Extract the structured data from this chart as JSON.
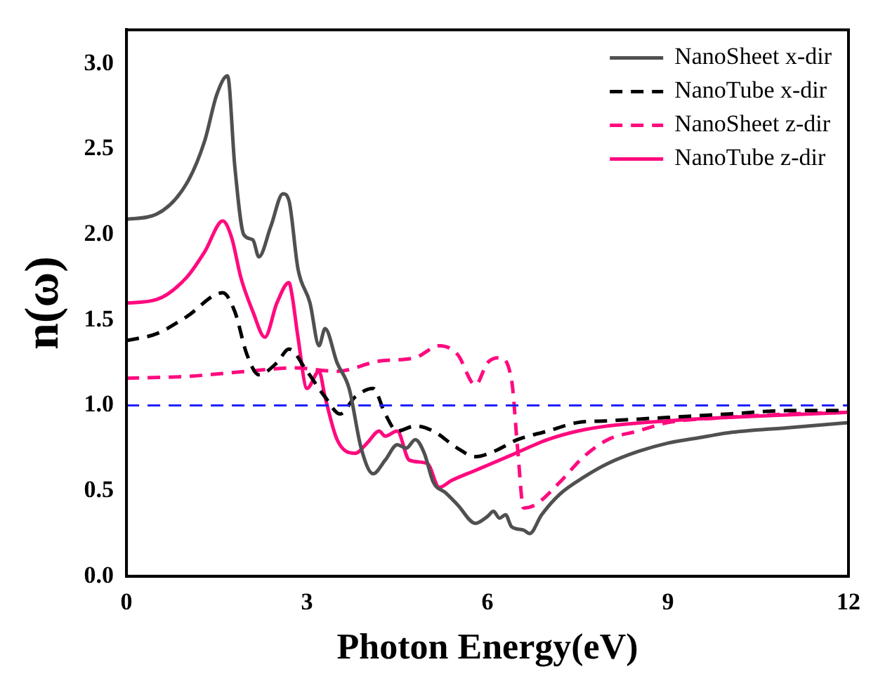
{
  "chart_data": {
    "type": "line",
    "xlabel": "Photon Energy(eV)",
    "ylabel": "n(ω)",
    "xlim": [
      0,
      12
    ],
    "ylim": [
      0,
      3.2
    ],
    "xticks": [
      0,
      3,
      6,
      9,
      12
    ],
    "yticks": [
      {
        "value": 0,
        "label": "0.0"
      },
      {
        "value": 0.5,
        "label": "0.5"
      },
      {
        "value": 1,
        "label": "1.0"
      },
      {
        "value": 1.5,
        "label": "1.5"
      },
      {
        "value": 2,
        "label": "2.0"
      },
      {
        "value": 2.5,
        "label": "2.5"
      },
      {
        "value": 3,
        "label": "3.0"
      }
    ],
    "grid": false,
    "legend": "top right",
    "marker": "none",
    "ref_lines": [
      {
        "axis": "y",
        "value": 1,
        "color": "#2020ff",
        "line_style": "dashed"
      }
    ],
    "series": [
      {
        "name": "NanoSheet x-dir",
        "color": "#505050",
        "line_style": "solid",
        "x": [
          0,
          0.5,
          1.0,
          1.3,
          1.5,
          1.68,
          1.8,
          1.95,
          2.1,
          2.2,
          2.4,
          2.6,
          2.7,
          2.85,
          3.05,
          3.2,
          3.3,
          3.5,
          3.7,
          3.9,
          4.1,
          4.3,
          4.5,
          4.65,
          4.8,
          4.95,
          5.1,
          5.3,
          5.5,
          5.8,
          6.0,
          6.1,
          6.2,
          6.3,
          6.4,
          6.6,
          6.7,
          6.9,
          7.2,
          7.6,
          8,
          8.5,
          9,
          9.5,
          10,
          11,
          12
        ],
        "values": [
          2.09,
          2.12,
          2.3,
          2.55,
          2.82,
          2.93,
          2.4,
          2.0,
          1.97,
          1.87,
          2.05,
          2.24,
          2.2,
          1.8,
          1.6,
          1.35,
          1.45,
          1.25,
          1.1,
          0.75,
          0.6,
          0.68,
          0.77,
          0.75,
          0.8,
          0.72,
          0.55,
          0.49,
          0.42,
          0.31,
          0.35,
          0.38,
          0.34,
          0.36,
          0.29,
          0.27,
          0.25,
          0.36,
          0.48,
          0.58,
          0.66,
          0.73,
          0.78,
          0.81,
          0.84,
          0.87,
          0.9
        ]
      },
      {
        "name": "NanoTube x-dir",
        "color": "#000000",
        "line_style": "dashed",
        "x": [
          0,
          0.5,
          1.0,
          1.6,
          1.8,
          2.0,
          2.2,
          2.5,
          2.7,
          3.0,
          3.3,
          3.55,
          3.8,
          4.1,
          4.3,
          4.5,
          4.8,
          5.1,
          5.5,
          5.8,
          6.1,
          6.5,
          7,
          7.5,
          8,
          9,
          10,
          11,
          12
        ],
        "values": [
          1.38,
          1.42,
          1.52,
          1.66,
          1.55,
          1.3,
          1.18,
          1.25,
          1.33,
          1.2,
          1.05,
          0.95,
          1.05,
          1.1,
          0.95,
          0.85,
          0.88,
          0.85,
          0.75,
          0.7,
          0.73,
          0.8,
          0.85,
          0.9,
          0.91,
          0.93,
          0.95,
          0.97,
          0.97
        ]
      },
      {
        "name": "NanoSheet z-dir",
        "color": "#ff0a7f",
        "line_style": "dashed",
        "x": [
          0,
          1,
          2,
          2.8,
          3.5,
          4.2,
          4.8,
          5.2,
          5.5,
          5.8,
          6.0,
          6.2,
          6.4,
          6.5,
          6.6,
          6.8,
          7.2,
          7.6,
          8,
          8.5,
          9,
          10,
          11,
          12
        ],
        "values": [
          1.16,
          1.17,
          1.2,
          1.22,
          1.2,
          1.26,
          1.28,
          1.35,
          1.3,
          1.12,
          1.25,
          1.28,
          1.15,
          0.75,
          0.4,
          0.42,
          0.55,
          0.7,
          0.8,
          0.85,
          0.9,
          0.93,
          0.95,
          0.96
        ]
      },
      {
        "name": "NanoTube z-dir",
        "color": "#ff0a7f",
        "line_style": "solid",
        "x": [
          0,
          0.5,
          1.0,
          1.3,
          1.6,
          1.75,
          1.9,
          2.1,
          2.3,
          2.5,
          2.7,
          2.75,
          2.85,
          3.0,
          3.2,
          3.3,
          3.5,
          3.8,
          4.0,
          4.2,
          4.3,
          4.5,
          4.7,
          5.0,
          5.2,
          5.4,
          5.8,
          6.0,
          6.4,
          7,
          7.5,
          8,
          9,
          10,
          12
        ],
        "values": [
          1.6,
          1.62,
          1.75,
          1.9,
          2.08,
          1.98,
          1.75,
          1.55,
          1.4,
          1.6,
          1.72,
          1.65,
          1.4,
          1.1,
          1.2,
          1.05,
          0.8,
          0.72,
          0.78,
          0.85,
          0.82,
          0.85,
          0.68,
          0.66,
          0.52,
          0.56,
          0.62,
          0.65,
          0.71,
          0.8,
          0.85,
          0.88,
          0.91,
          0.93,
          0.96
        ]
      }
    ]
  }
}
